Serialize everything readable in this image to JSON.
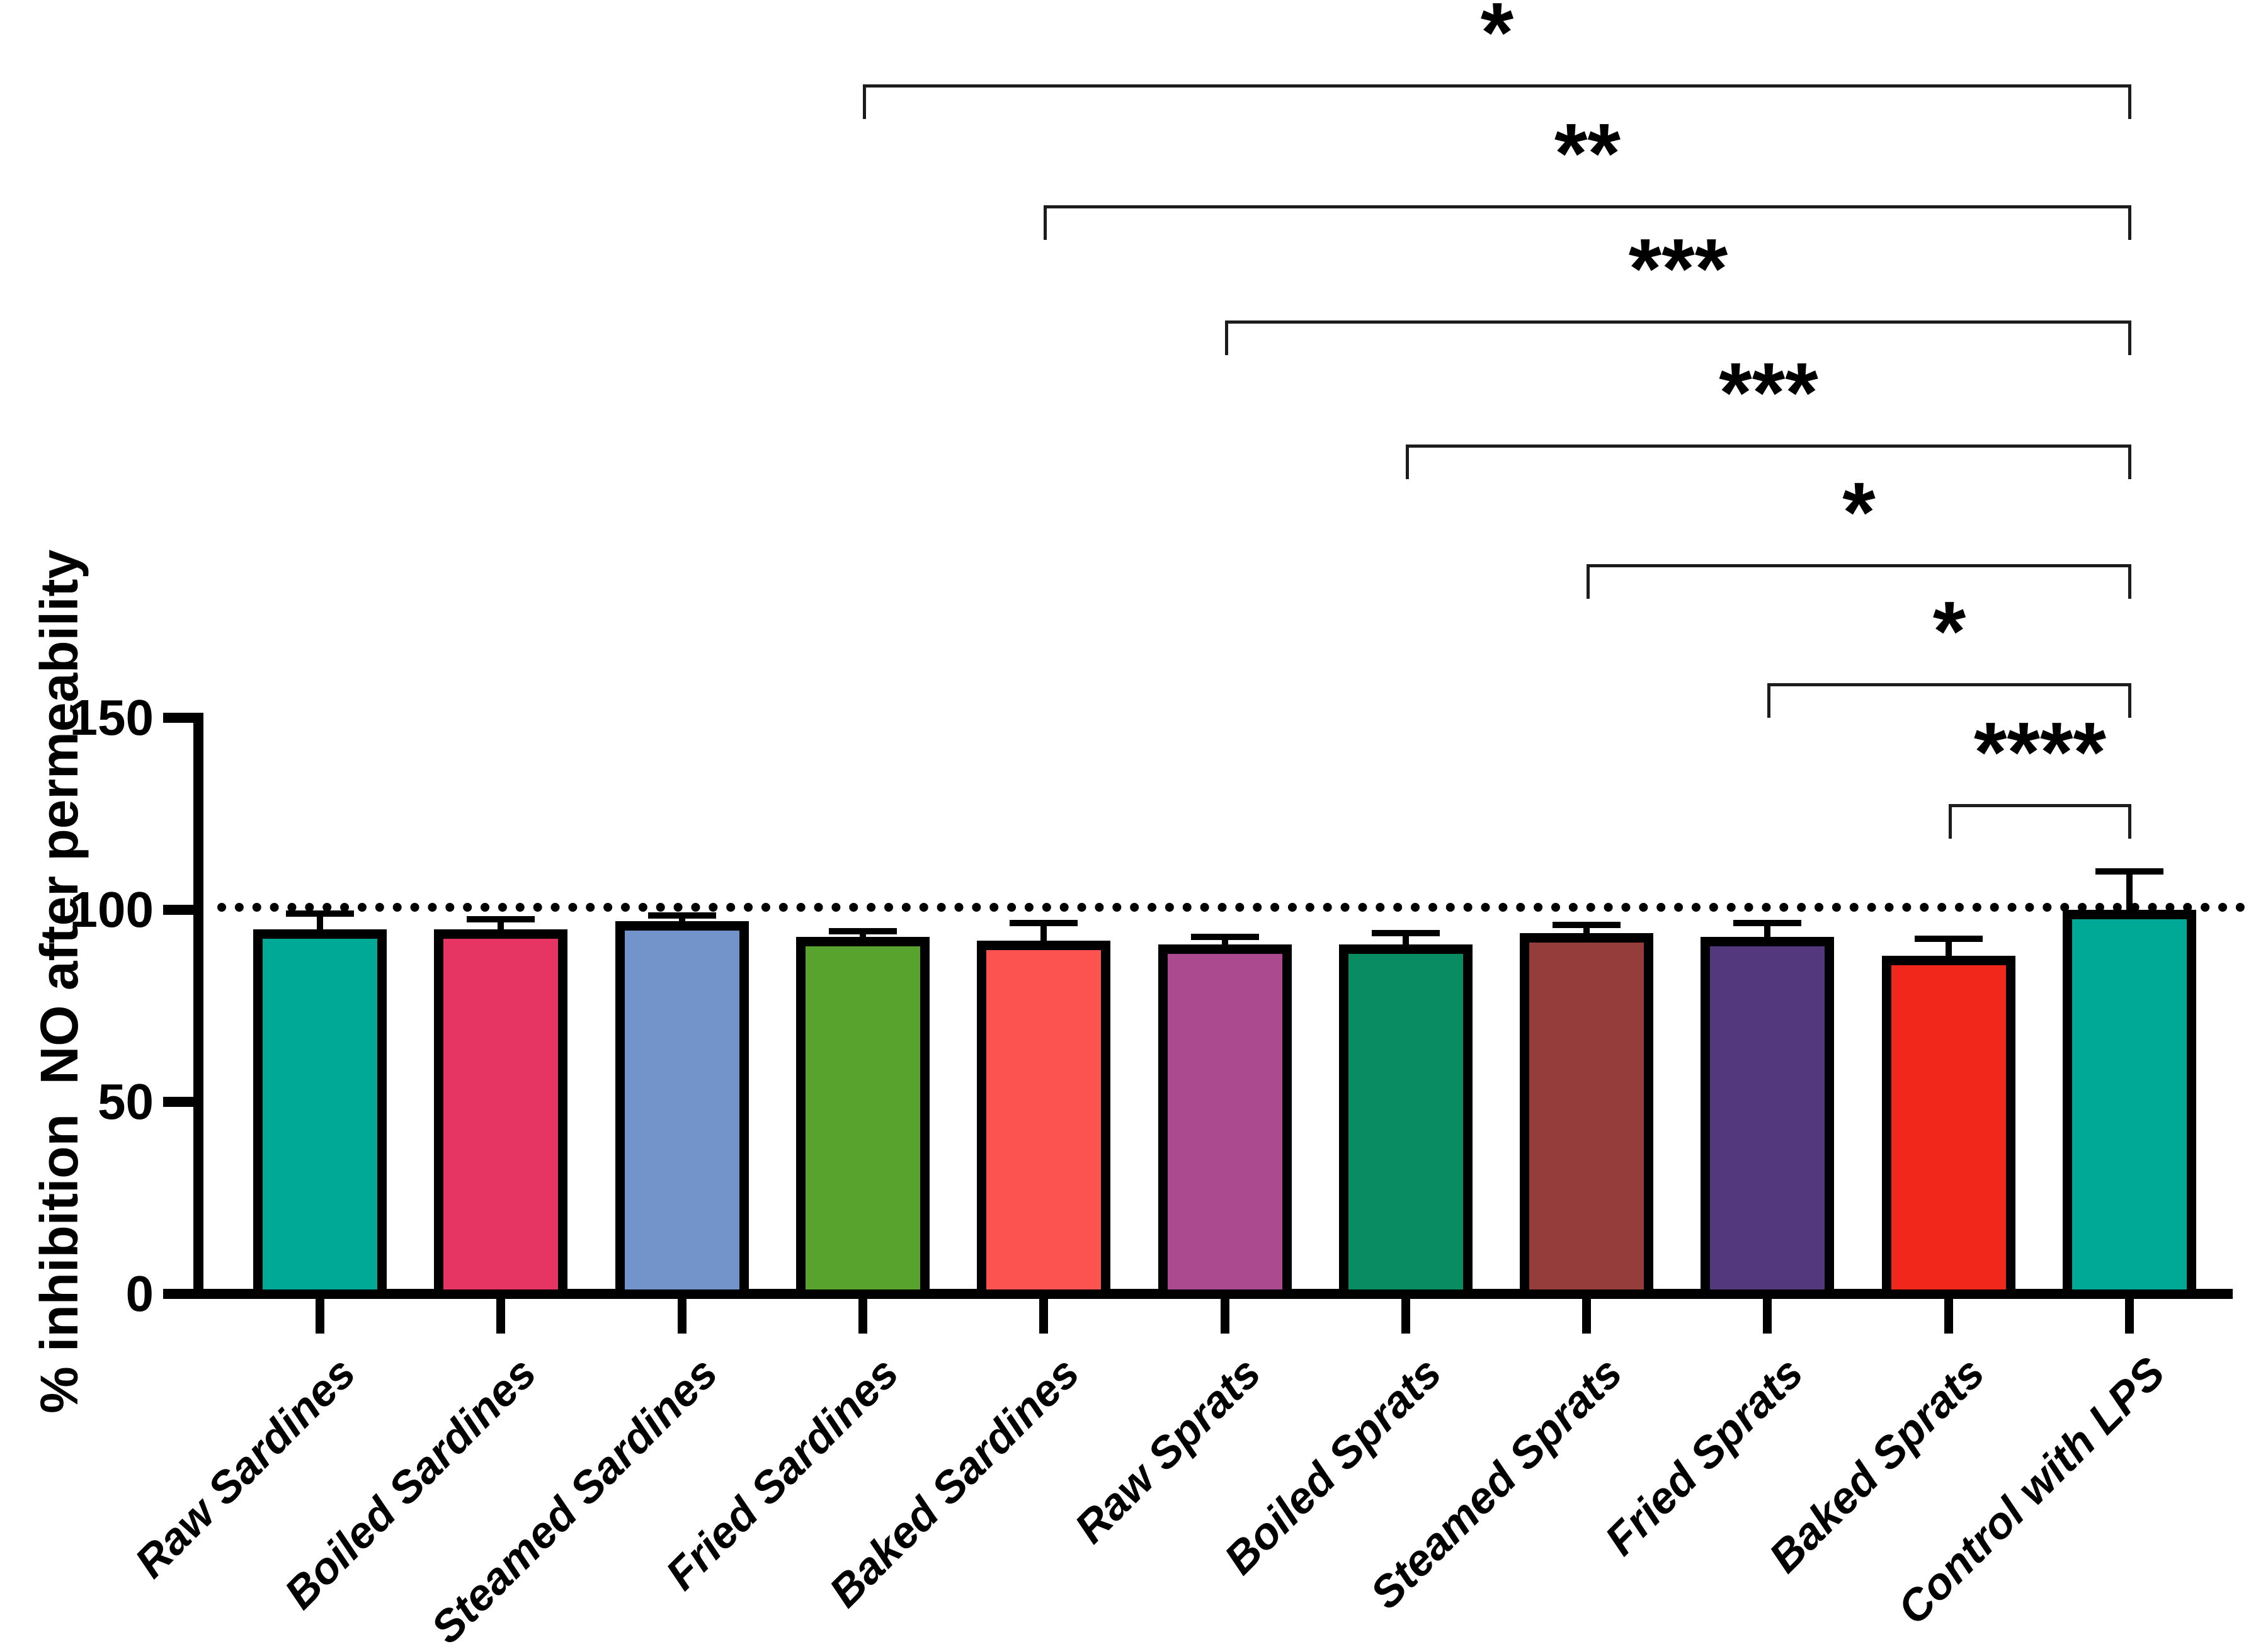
{
  "chart_data": {
    "type": "bar",
    "title": "",
    "xlabel": "",
    "ylabel": "% inhibition  NO after permeability",
    "ylim": [
      0,
      150
    ],
    "yticks": [
      0,
      50,
      100,
      150
    ],
    "grid": false,
    "legend_position": "none",
    "reference_line": {
      "value": 100,
      "style": "dotted",
      "color": "#000000"
    },
    "categories": [
      "Raw Sardines",
      "Boiled Sardines",
      "Steamed Sardines",
      "Fried Sardines",
      "Baked Sardines",
      "Raw Sprats",
      "Boiled Sprats",
      "Steamed Sprats",
      "Fried Sprats",
      "Baked Sprats",
      "Control with LPS"
    ],
    "values": [
      95,
      95,
      97,
      93,
      92,
      91,
      91,
      94,
      93,
      88,
      100
    ],
    "errors_plus": [
      4,
      2.5,
      1.5,
      1.5,
      4.5,
      2,
      3,
      2,
      3.5,
      4.5,
      10
    ],
    "bar_colors": [
      "#00A996",
      "#E73563",
      "#7394CB",
      "#57A32E",
      "#FD5350",
      "#AC4A90",
      "#0A8C62",
      "#943D3B",
      "#53387D",
      "#F2271C",
      "#00A996"
    ],
    "bar_border_color": "#000000",
    "significance_brackets": [
      {
        "from": "Fried Sardines",
        "to": "Control with LPS",
        "label": "*"
      },
      {
        "from": "Baked Sardines",
        "to": "Control with LPS",
        "label": "**"
      },
      {
        "from": "Raw Sprats",
        "to": "Control with LPS",
        "label": "***"
      },
      {
        "from": "Boiled Sprats",
        "to": "Control with LPS",
        "label": "***"
      },
      {
        "from": "Steamed Sprats",
        "to": "Control with LPS",
        "label": "*"
      },
      {
        "from": "Fried Sprats",
        "to": "Control with LPS",
        "label": "*"
      },
      {
        "from": "Baked Sprats",
        "to": "Control with LPS",
        "label": "****"
      }
    ]
  }
}
